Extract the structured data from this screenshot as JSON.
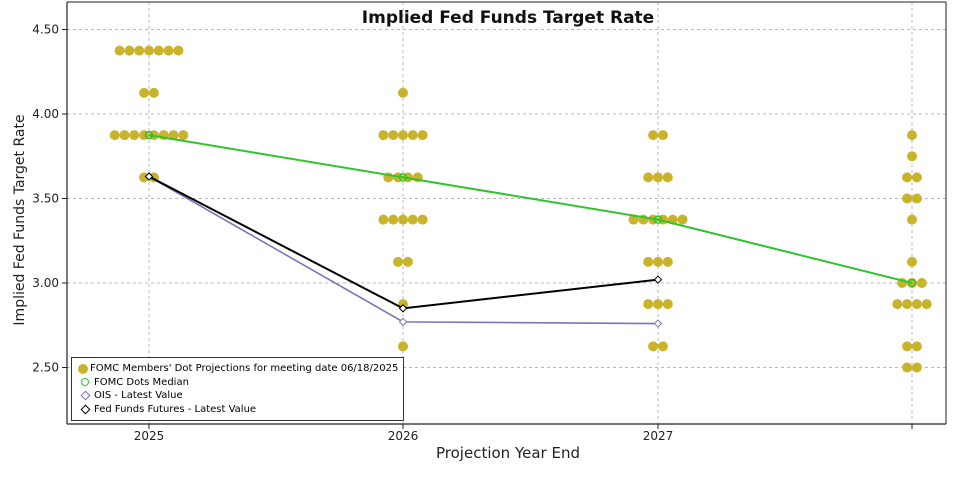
{
  "chart_data": {
    "type": "scatter",
    "title": "Implied Fed Funds Target Rate",
    "xlabel": "Projection Year End",
    "ylabel": "Implied Fed Funds Target Rate",
    "x_categories": [
      "2025",
      "2026",
      "2027",
      ""
    ],
    "y_ticks": [
      "2.50",
      "3.00",
      "3.50",
      "4.00",
      "4.50"
    ],
    "ylim": [
      2.2,
      4.6
    ],
    "grid": true,
    "legend_position": "bottom-left",
    "colors": {
      "dots": "#c9b32a",
      "median": "#2ec42e",
      "ois": "#7b74b8",
      "futures": "#000000"
    },
    "series": [
      {
        "name": "FOMC Members' Dot Projections for meeting date 06/18/2025",
        "kind": "dots",
        "points": [
          {
            "x": "2025",
            "y": 4.375,
            "count": 7
          },
          {
            "x": "2025",
            "y": 4.125,
            "count": 2
          },
          {
            "x": "2025",
            "y": 3.875,
            "count": 8
          },
          {
            "x": "2025",
            "y": 3.625,
            "count": 2
          },
          {
            "x": "2026",
            "y": 4.125,
            "count": 1
          },
          {
            "x": "2026",
            "y": 3.875,
            "count": 5
          },
          {
            "x": "2026",
            "y": 3.625,
            "count": 4
          },
          {
            "x": "2026",
            "y": 3.375,
            "count": 5
          },
          {
            "x": "2026",
            "y": 3.125,
            "count": 2
          },
          {
            "x": "2026",
            "y": 2.875,
            "count": 1
          },
          {
            "x": "2026",
            "y": 2.625,
            "count": 1
          },
          {
            "x": "2027",
            "y": 3.875,
            "count": 2
          },
          {
            "x": "2027",
            "y": 3.625,
            "count": 3
          },
          {
            "x": "2027",
            "y": 3.375,
            "count": 6
          },
          {
            "x": "2027",
            "y": 3.125,
            "count": 3
          },
          {
            "x": "2027",
            "y": 2.875,
            "count": 3
          },
          {
            "x": "2027",
            "y": 2.625,
            "count": 2
          },
          {
            "x": "",
            "y": 3.875,
            "count": 1
          },
          {
            "x": "",
            "y": 3.75,
            "count": 1
          },
          {
            "x": "",
            "y": 3.625,
            "count": 2
          },
          {
            "x": "",
            "y": 3.5,
            "count": 2
          },
          {
            "x": "",
            "y": 3.375,
            "count": 1
          },
          {
            "x": "",
            "y": 3.125,
            "count": 1
          },
          {
            "x": "",
            "y": 3.0,
            "count": 3
          },
          {
            "x": "",
            "y": 2.875,
            "count": 4
          },
          {
            "x": "",
            "y": 2.625,
            "count": 2
          },
          {
            "x": "",
            "y": 2.5,
            "count": 2
          }
        ]
      },
      {
        "name": "FOMC Dots Median",
        "kind": "line",
        "x": [
          "2025",
          "2026",
          "2027",
          ""
        ],
        "values": [
          3.875,
          3.625,
          3.375,
          3.0
        ]
      },
      {
        "name": "OIS - Latest Value",
        "kind": "line",
        "x": [
          "2025",
          "2026",
          "2027"
        ],
        "values": [
          3.63,
          2.77,
          2.76
        ]
      },
      {
        "name": "Fed Funds Futures - Latest Value",
        "kind": "line",
        "x": [
          "2025",
          "2026",
          "2027"
        ],
        "values": [
          3.63,
          2.85,
          3.02
        ]
      }
    ]
  }
}
